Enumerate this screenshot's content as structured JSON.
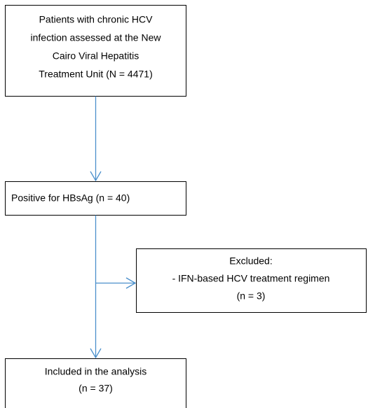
{
  "nodes": [
    {
      "lines": [
        "Patients with chronic HCV",
        "infection assessed at the New",
        "Cairo Viral Hepatitis",
        "Treatment Unit (N = 4471)"
      ]
    },
    {
      "lines": [
        "Positive for HBsAg (n = 40)"
      ]
    },
    {
      "lines": [
        "Excluded:",
        "- IFN-based HCV treatment regimen",
        "(n = 3)"
      ]
    },
    {
      "lines": [
        "Included in the analysis",
        "(n = 37)"
      ]
    }
  ]
}
